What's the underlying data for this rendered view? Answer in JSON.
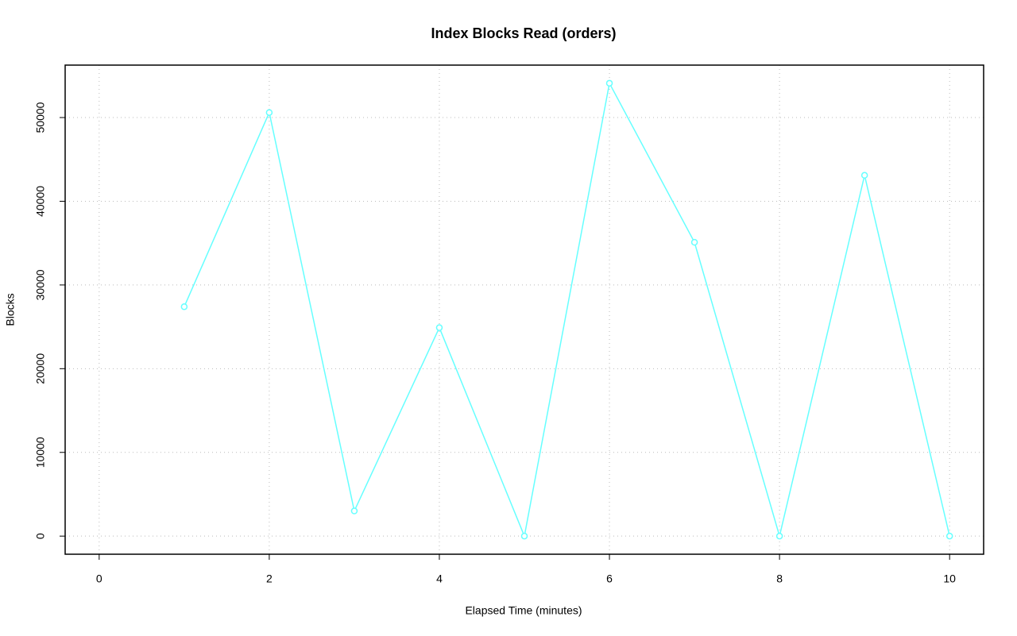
{
  "chart_data": {
    "type": "line",
    "title": "Index Blocks Read (orders)",
    "x_label": "Elapsed Time (minutes)",
    "y_label": "Blocks",
    "x": [
      1,
      2,
      3,
      4,
      5,
      6,
      7,
      8,
      9,
      10
    ],
    "series": [
      {
        "name": "orders",
        "color": "#66ffff",
        "values": [
          27400,
          50600,
          3000,
          24900,
          0,
          54100,
          35100,
          0,
          43100,
          0
        ]
      }
    ],
    "xlim": [
      -0.4,
      10.4
    ],
    "xticks": [
      0,
      2,
      4,
      6,
      8,
      10
    ],
    "ylim": [
      -2164,
      56264
    ],
    "yticks": [
      0,
      10000,
      20000,
      30000,
      40000,
      50000
    ],
    "grid": true,
    "markers": true
  }
}
